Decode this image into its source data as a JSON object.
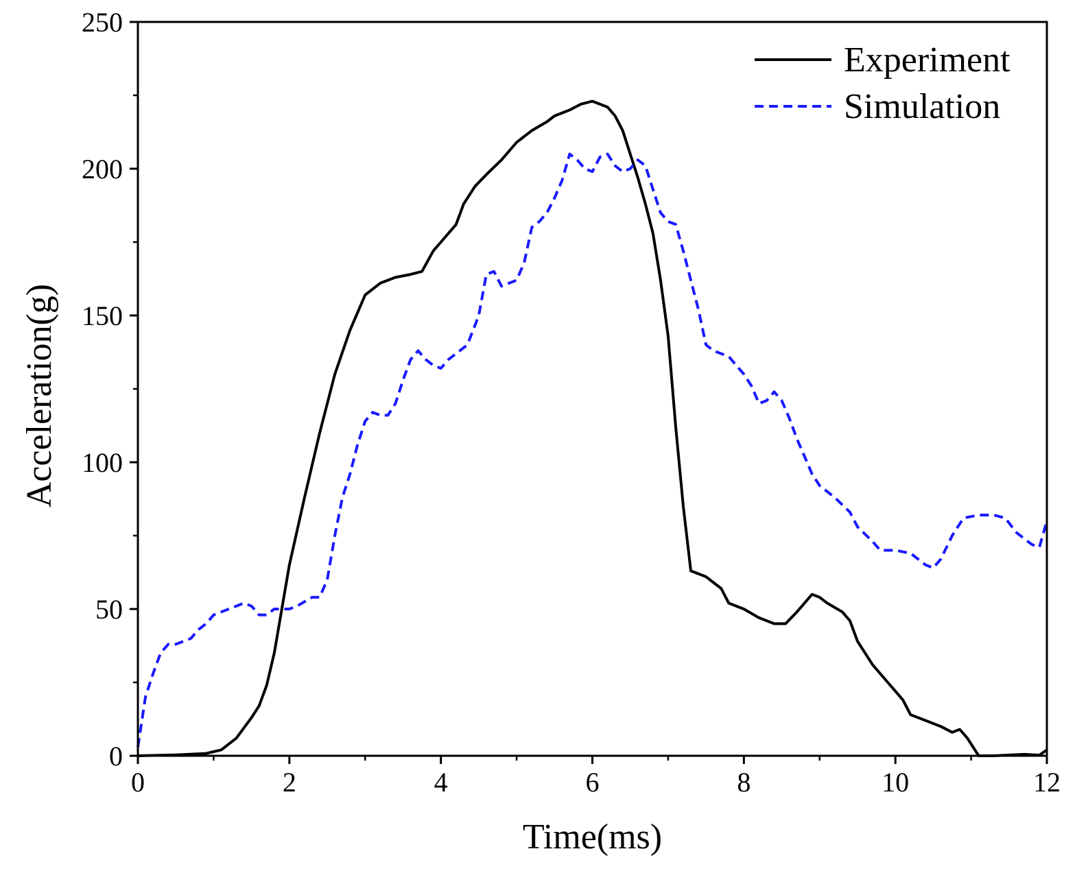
{
  "chart_data": {
    "type": "line",
    "title": "",
    "xlabel": "Time(ms)",
    "ylabel": "Acceleration(g)",
    "xlim": [
      0,
      12
    ],
    "ylim": [
      0,
      250
    ],
    "xticks": [
      0,
      2,
      4,
      6,
      8,
      10,
      12
    ],
    "yticks": [
      0,
      50,
      100,
      150,
      200,
      250
    ],
    "xtick_labels": [
      "0",
      "2",
      "4",
      "6",
      "8",
      "10",
      "12"
    ],
    "ytick_labels": [
      "0",
      "50",
      "100",
      "150",
      "200",
      "250"
    ],
    "x_minor_step": 1,
    "y_minor_step": 25,
    "grid": false,
    "legend_position": "top-right",
    "series": [
      {
        "name": "Experiment",
        "color": "#000000",
        "style": "solid",
        "points": [
          [
            0,
            0
          ],
          [
            0.5,
            0.3
          ],
          [
            0.9,
            0.8
          ],
          [
            1.1,
            2
          ],
          [
            1.3,
            6
          ],
          [
            1.5,
            13
          ],
          [
            1.6,
            17
          ],
          [
            1.7,
            24
          ],
          [
            1.8,
            35
          ],
          [
            1.9,
            50
          ],
          [
            2.0,
            65
          ],
          [
            2.2,
            88
          ],
          [
            2.4,
            110
          ],
          [
            2.6,
            130
          ],
          [
            2.8,
            145
          ],
          [
            3.0,
            157
          ],
          [
            3.2,
            161
          ],
          [
            3.4,
            163
          ],
          [
            3.6,
            164
          ],
          [
            3.75,
            165
          ],
          [
            3.9,
            172
          ],
          [
            4.0,
            175
          ],
          [
            4.2,
            181
          ],
          [
            4.3,
            188
          ],
          [
            4.45,
            194
          ],
          [
            4.6,
            198
          ],
          [
            4.8,
            203
          ],
          [
            5.0,
            209
          ],
          [
            5.2,
            213
          ],
          [
            5.4,
            216
          ],
          [
            5.5,
            218
          ],
          [
            5.7,
            220
          ],
          [
            5.85,
            222
          ],
          [
            6.0,
            223
          ],
          [
            6.2,
            221
          ],
          [
            6.3,
            218
          ],
          [
            6.4,
            213
          ],
          [
            6.5,
            205
          ],
          [
            6.6,
            197
          ],
          [
            6.7,
            188
          ],
          [
            6.8,
            178
          ],
          [
            6.9,
            162
          ],
          [
            7.0,
            143
          ],
          [
            7.1,
            112
          ],
          [
            7.2,
            85
          ],
          [
            7.3,
            63
          ],
          [
            7.4,
            62
          ],
          [
            7.5,
            61
          ],
          [
            7.6,
            59
          ],
          [
            7.7,
            57
          ],
          [
            7.8,
            52
          ],
          [
            7.9,
            51
          ],
          [
            8.0,
            50
          ],
          [
            8.2,
            47
          ],
          [
            8.4,
            45
          ],
          [
            8.55,
            45
          ],
          [
            8.7,
            49
          ],
          [
            8.9,
            55
          ],
          [
            9.0,
            54
          ],
          [
            9.1,
            52
          ],
          [
            9.3,
            49
          ],
          [
            9.4,
            46
          ],
          [
            9.5,
            39
          ],
          [
            9.7,
            31
          ],
          [
            9.9,
            25
          ],
          [
            10.0,
            22
          ],
          [
            10.1,
            19
          ],
          [
            10.2,
            14
          ],
          [
            10.4,
            12
          ],
          [
            10.6,
            10
          ],
          [
            10.75,
            8
          ],
          [
            10.85,
            9
          ],
          [
            10.95,
            6
          ],
          [
            11.1,
            0
          ],
          [
            11.3,
            0
          ],
          [
            11.7,
            0.5
          ],
          [
            11.9,
            0.2
          ],
          [
            12.0,
            2
          ]
        ]
      },
      {
        "name": "Simulation",
        "color": "#1a1aff",
        "style": "dashed",
        "points": [
          [
            0,
            3
          ],
          [
            0.1,
            20
          ],
          [
            0.2,
            28
          ],
          [
            0.3,
            35
          ],
          [
            0.4,
            38
          ],
          [
            0.5,
            38
          ],
          [
            0.6,
            39
          ],
          [
            0.7,
            40
          ],
          [
            0.8,
            43
          ],
          [
            0.9,
            45
          ],
          [
            1.0,
            48
          ],
          [
            1.2,
            50
          ],
          [
            1.4,
            52
          ],
          [
            1.5,
            51
          ],
          [
            1.6,
            48
          ],
          [
            1.7,
            48
          ],
          [
            1.8,
            50
          ],
          [
            2.0,
            50
          ],
          [
            2.1,
            51
          ],
          [
            2.3,
            54
          ],
          [
            2.4,
            54
          ],
          [
            2.5,
            60
          ],
          [
            2.6,
            75
          ],
          [
            2.7,
            88
          ],
          [
            2.8,
            96
          ],
          [
            2.9,
            106
          ],
          [
            3.0,
            114
          ],
          [
            3.1,
            117
          ],
          [
            3.2,
            116
          ],
          [
            3.3,
            116
          ],
          [
            3.4,
            120
          ],
          [
            3.5,
            128
          ],
          [
            3.6,
            135
          ],
          [
            3.7,
            138
          ],
          [
            3.8,
            135
          ],
          [
            3.9,
            133
          ],
          [
            4.0,
            132
          ],
          [
            4.1,
            135
          ],
          [
            4.2,
            137
          ],
          [
            4.35,
            140
          ],
          [
            4.5,
            150
          ],
          [
            4.6,
            164
          ],
          [
            4.7,
            165
          ],
          [
            4.8,
            160
          ],
          [
            4.9,
            161
          ],
          [
            5.0,
            162
          ],
          [
            5.1,
            168
          ],
          [
            5.2,
            180
          ],
          [
            5.3,
            182
          ],
          [
            5.4,
            185
          ],
          [
            5.5,
            190
          ],
          [
            5.6,
            196
          ],
          [
            5.7,
            205
          ],
          [
            5.8,
            203
          ],
          [
            5.9,
            200
          ],
          [
            6.0,
            199
          ],
          [
            6.1,
            204
          ],
          [
            6.2,
            205
          ],
          [
            6.3,
            201
          ],
          [
            6.4,
            199
          ],
          [
            6.5,
            200
          ],
          [
            6.6,
            203
          ],
          [
            6.7,
            201
          ],
          [
            6.8,
            193
          ],
          [
            6.9,
            185
          ],
          [
            7.0,
            182
          ],
          [
            7.1,
            181
          ],
          [
            7.2,
            172
          ],
          [
            7.3,
            162
          ],
          [
            7.4,
            152
          ],
          [
            7.5,
            140
          ],
          [
            7.6,
            138
          ],
          [
            7.8,
            136
          ],
          [
            8.0,
            130
          ],
          [
            8.1,
            126
          ],
          [
            8.2,
            120
          ],
          [
            8.3,
            121
          ],
          [
            8.4,
            124
          ],
          [
            8.5,
            121
          ],
          [
            8.6,
            115
          ],
          [
            8.7,
            108
          ],
          [
            8.8,
            102
          ],
          [
            8.9,
            96
          ],
          [
            9.0,
            92
          ],
          [
            9.2,
            88
          ],
          [
            9.4,
            83
          ],
          [
            9.5,
            78
          ],
          [
            9.7,
            73
          ],
          [
            9.8,
            70
          ],
          [
            10.0,
            70
          ],
          [
            10.2,
            69
          ],
          [
            10.4,
            65
          ],
          [
            10.5,
            64
          ],
          [
            10.6,
            67
          ],
          [
            10.75,
            75
          ],
          [
            10.9,
            81
          ],
          [
            11.1,
            82
          ],
          [
            11.3,
            82
          ],
          [
            11.45,
            81
          ],
          [
            11.6,
            76
          ],
          [
            11.8,
            72
          ],
          [
            11.9,
            71
          ],
          [
            12.0,
            80
          ]
        ]
      }
    ]
  }
}
